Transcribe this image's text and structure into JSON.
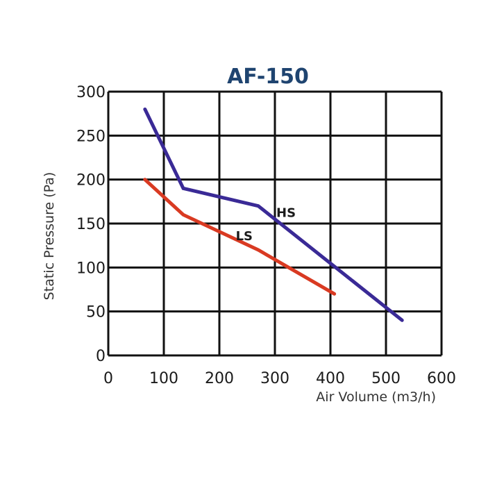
{
  "chart_data": {
    "type": "line",
    "title": "AF-150",
    "xlabel": "Air Volume (m3/h)",
    "ylabel": "Static Pressure (Pa)",
    "xlim": [
      0,
      600
    ],
    "ylim": [
      0,
      300
    ],
    "xticks": [
      "0",
      "100",
      "200",
      "300",
      "400",
      "500",
      "600"
    ],
    "yticks": [
      "0",
      "50",
      "100",
      "150",
      "200",
      "250",
      "300"
    ],
    "grid": true,
    "series": [
      {
        "name": "HS",
        "color": "#3a2a96",
        "x": [
          66,
          135,
          270,
          529
        ],
        "y": [
          280,
          190,
          170,
          40
        ]
      },
      {
        "name": "LS",
        "color": "#d93a22",
        "x": [
          66,
          135,
          270,
          407
        ],
        "y": [
          200,
          160,
          120,
          70
        ]
      }
    ]
  }
}
